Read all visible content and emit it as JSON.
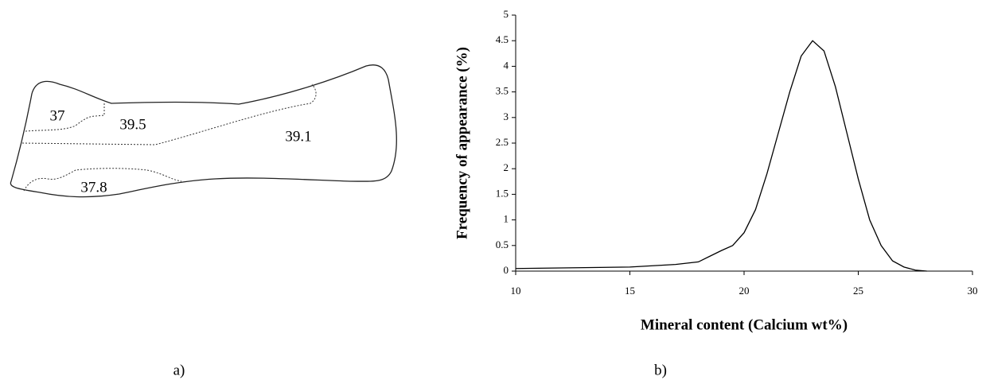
{
  "diagram": {
    "regions": [
      "37",
      "39.5",
      "39.1",
      "37.8"
    ],
    "caption": "a)"
  },
  "chart_data": {
    "type": "line",
    "x_label": "Mineral content (Calcium wt%)",
    "y_label": "Frequency of appearance (%)",
    "caption": "b)",
    "x": [
      10,
      15,
      17,
      18,
      19,
      19.5,
      20,
      20.5,
      21,
      21.5,
      22,
      22.5,
      23,
      23.5,
      24,
      24.5,
      25,
      25.5,
      26,
      26.5,
      27,
      27.5,
      28
    ],
    "series": [
      {
        "color": "#000000",
        "values": [
          0.05,
          0.08,
          0.13,
          0.18,
          0.4,
          0.5,
          0.75,
          1.2,
          1.9,
          2.7,
          3.5,
          4.2,
          4.5,
          4.3,
          3.6,
          2.7,
          1.8,
          1.0,
          0.5,
          0.2,
          0.08,
          0.02,
          0
        ]
      }
    ],
    "xlim": [
      10,
      30
    ],
    "xticks": [
      10,
      15,
      20,
      25,
      30
    ],
    "ylim": [
      0,
      5
    ],
    "yticks": [
      0,
      0.5,
      1,
      1.5,
      2,
      2.5,
      3,
      3.5,
      4,
      4.5,
      5
    ],
    "grid": false
  }
}
